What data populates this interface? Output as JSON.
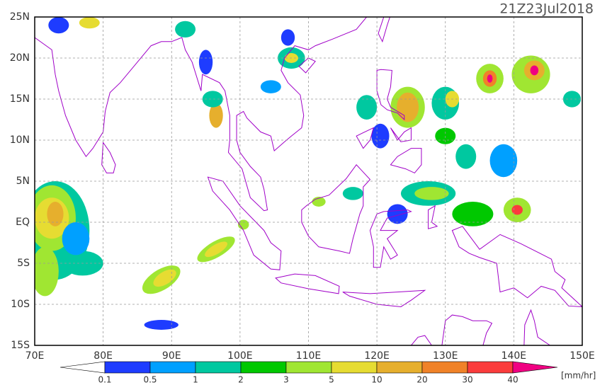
{
  "header": {
    "title": "21Z23Jul2018"
  },
  "map": {
    "lon_labels": [
      "70E",
      "80E",
      "90E",
      "100E",
      "110E",
      "120E",
      "130E",
      "140E",
      "150E"
    ],
    "lat_labels": [
      "25N",
      "20N",
      "15N",
      "10N",
      "5N",
      "EQ",
      "5S",
      "10S",
      "15S"
    ]
  },
  "colorbar": {
    "labels": [
      "0.1",
      "0.5",
      "1",
      "2",
      "3",
      "5",
      "10",
      "20",
      "30",
      "40"
    ],
    "colors": [
      "#ffffff",
      "#1e3cff",
      "#00a0ff",
      "#00c8a0",
      "#00c800",
      "#a0e632",
      "#e6dc32",
      "#e6af2d",
      "#f08228",
      "#fa3c3c",
      "#f00082"
    ],
    "unit": "[mm/hr]"
  }
}
